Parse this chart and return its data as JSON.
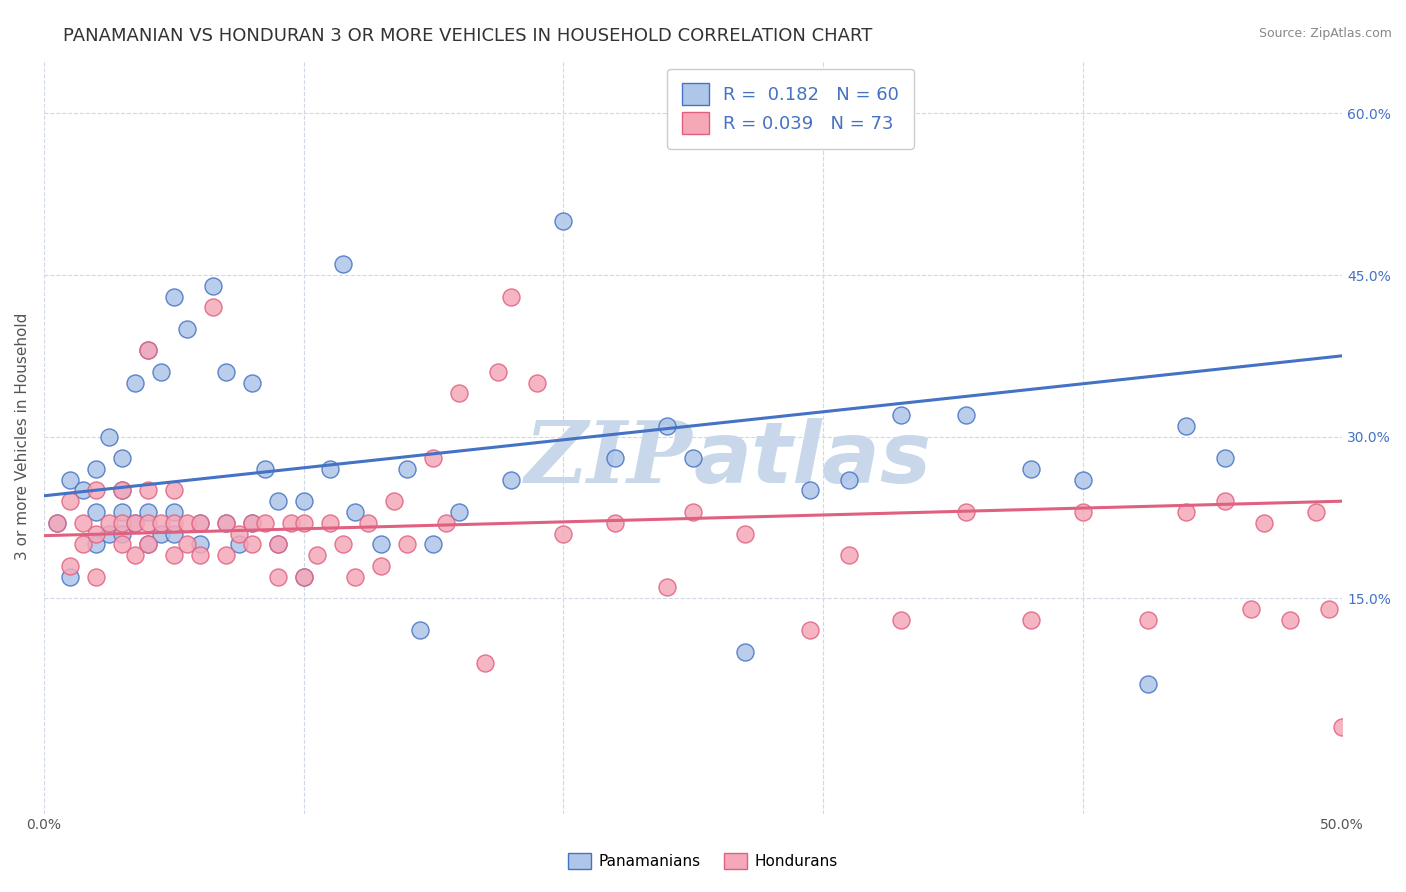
{
  "title": "PANAMANIAN VS HONDURAN 3 OR MORE VEHICLES IN HOUSEHOLD CORRELATION CHART",
  "source": "Source: ZipAtlas.com",
  "ylabel": "3 or more Vehicles in Household",
  "x_min": 0.0,
  "x_max": 0.5,
  "y_min": -0.05,
  "y_max": 0.65,
  "x_ticks": [
    0.0,
    0.1,
    0.2,
    0.3,
    0.4,
    0.5
  ],
  "x_tick_labels": [
    "0.0%",
    "",
    "",
    "",
    "",
    "50.0%"
  ],
  "y_ticks_right": [
    0.15,
    0.3,
    0.45,
    0.6
  ],
  "y_tick_labels_right": [
    "15.0%",
    "30.0%",
    "45.0%",
    "60.0%"
  ],
  "panamanian_color": "#aec6e8",
  "honduran_color": "#f4a8b8",
  "panamanian_line_color": "#4472c4",
  "honduran_line_color": "#e06080",
  "watermark_color": "#c8d8ea",
  "legend_R_panama": "R =  0.182",
  "legend_N_panama": "N = 60",
  "legend_R_honduras": "R = 0.039",
  "legend_N_honduras": "N = 73",
  "panama_scatter_x": [
    0.005,
    0.01,
    0.01,
    0.015,
    0.02,
    0.02,
    0.02,
    0.025,
    0.025,
    0.03,
    0.03,
    0.03,
    0.03,
    0.035,
    0.035,
    0.04,
    0.04,
    0.04,
    0.045,
    0.045,
    0.05,
    0.05,
    0.05,
    0.055,
    0.06,
    0.06,
    0.065,
    0.07,
    0.07,
    0.075,
    0.08,
    0.08,
    0.085,
    0.09,
    0.09,
    0.1,
    0.1,
    0.11,
    0.115,
    0.12,
    0.13,
    0.14,
    0.145,
    0.15,
    0.16,
    0.18,
    0.2,
    0.22,
    0.24,
    0.25,
    0.27,
    0.295,
    0.31,
    0.33,
    0.355,
    0.38,
    0.4,
    0.425,
    0.44,
    0.455
  ],
  "panama_scatter_y": [
    0.22,
    0.17,
    0.26,
    0.25,
    0.2,
    0.23,
    0.27,
    0.21,
    0.3,
    0.21,
    0.23,
    0.25,
    0.28,
    0.22,
    0.35,
    0.2,
    0.23,
    0.38,
    0.21,
    0.36,
    0.21,
    0.23,
    0.43,
    0.4,
    0.2,
    0.22,
    0.44,
    0.22,
    0.36,
    0.2,
    0.22,
    0.35,
    0.27,
    0.2,
    0.24,
    0.17,
    0.24,
    0.27,
    0.46,
    0.23,
    0.2,
    0.27,
    0.12,
    0.2,
    0.23,
    0.26,
    0.5,
    0.28,
    0.31,
    0.28,
    0.1,
    0.25,
    0.26,
    0.32,
    0.32,
    0.27,
    0.26,
    0.07,
    0.31,
    0.28
  ],
  "honduran_scatter_x": [
    0.005,
    0.01,
    0.01,
    0.015,
    0.015,
    0.02,
    0.02,
    0.02,
    0.025,
    0.03,
    0.03,
    0.03,
    0.035,
    0.035,
    0.04,
    0.04,
    0.04,
    0.04,
    0.045,
    0.05,
    0.05,
    0.05,
    0.055,
    0.055,
    0.06,
    0.06,
    0.065,
    0.07,
    0.07,
    0.075,
    0.08,
    0.08,
    0.085,
    0.09,
    0.09,
    0.095,
    0.1,
    0.1,
    0.105,
    0.11,
    0.115,
    0.12,
    0.125,
    0.13,
    0.135,
    0.14,
    0.15,
    0.155,
    0.16,
    0.17,
    0.175,
    0.18,
    0.19,
    0.2,
    0.22,
    0.24,
    0.25,
    0.27,
    0.295,
    0.31,
    0.33,
    0.355,
    0.38,
    0.4,
    0.425,
    0.44,
    0.455,
    0.465,
    0.47,
    0.48,
    0.49,
    0.495,
    0.5
  ],
  "honduran_scatter_y": [
    0.22,
    0.18,
    0.24,
    0.2,
    0.22,
    0.17,
    0.21,
    0.25,
    0.22,
    0.2,
    0.22,
    0.25,
    0.19,
    0.22,
    0.2,
    0.22,
    0.25,
    0.38,
    0.22,
    0.19,
    0.22,
    0.25,
    0.2,
    0.22,
    0.19,
    0.22,
    0.42,
    0.19,
    0.22,
    0.21,
    0.2,
    0.22,
    0.22,
    0.17,
    0.2,
    0.22,
    0.17,
    0.22,
    0.19,
    0.22,
    0.2,
    0.17,
    0.22,
    0.18,
    0.24,
    0.2,
    0.28,
    0.22,
    0.34,
    0.09,
    0.36,
    0.43,
    0.35,
    0.21,
    0.22,
    0.16,
    0.23,
    0.21,
    0.12,
    0.19,
    0.13,
    0.23,
    0.13,
    0.23,
    0.13,
    0.23,
    0.24,
    0.14,
    0.22,
    0.13,
    0.23,
    0.14,
    0.03
  ],
  "panama_line_x": [
    0.0,
    0.5
  ],
  "panama_line_y": [
    0.245,
    0.375
  ],
  "honduran_line_x": [
    0.0,
    0.5
  ],
  "honduran_line_y": [
    0.208,
    0.24
  ],
  "background_color": "#ffffff",
  "grid_color": "#d0d8e4",
  "title_fontsize": 13,
  "axis_label_fontsize": 11,
  "tick_fontsize": 10,
  "legend_fontsize": 13
}
